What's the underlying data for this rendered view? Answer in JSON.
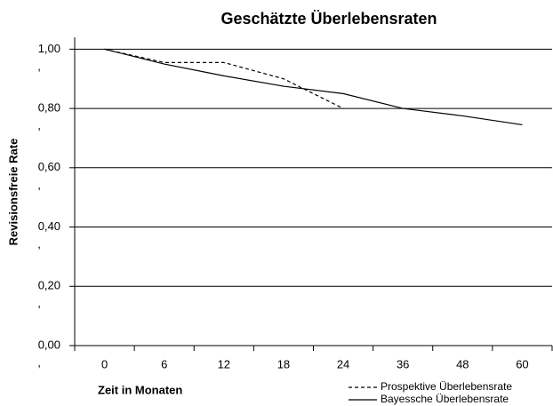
{
  "chart_data": {
    "type": "line",
    "title": "Geschätzte Überlebensraten",
    "y_label": "Revisionsfreie Rate",
    "x_label": "Zeit in Monaten",
    "categories": [
      "0",
      "6",
      "12",
      "18",
      "24",
      "36",
      "48",
      "60"
    ],
    "series": [
      {
        "name": "Prospektive Überlebensrate",
        "color": "#000000",
        "dash": "dashed",
        "values": [
          1.0,
          0.955,
          0.955,
          0.9,
          0.8,
          null,
          null,
          null
        ]
      },
      {
        "name": "Bayessche Überlebensrate",
        "color": "#000000",
        "dash": "solid",
        "values": [
          1.0,
          0.95,
          0.91,
          0.875,
          0.85,
          0.8,
          0.775,
          0.745
        ]
      }
    ],
    "ylim": [
      0,
      1.04
    ],
    "yticks": [
      {
        "value": 0,
        "label": "0,00"
      },
      {
        "value": 0.2,
        "label": "0,20"
      },
      {
        "value": 0.4,
        "label": "0,40"
      },
      {
        "value": 0.6,
        "label": "0,60"
      },
      {
        "value": 0.8,
        "label": "0,80"
      },
      {
        "value": 1.0,
        "label": "1,00"
      }
    ],
    "y_minor_ticks": [
      {
        "value": -0.06,
        "label": ","
      },
      {
        "value": 0.14,
        "label": ","
      },
      {
        "value": 0.34,
        "label": ","
      },
      {
        "value": 0.54,
        "label": ","
      },
      {
        "value": 0.74,
        "label": ","
      },
      {
        "value": 0.94,
        "label": ","
      }
    ],
    "grid": true,
    "legend": "bottom-right"
  }
}
